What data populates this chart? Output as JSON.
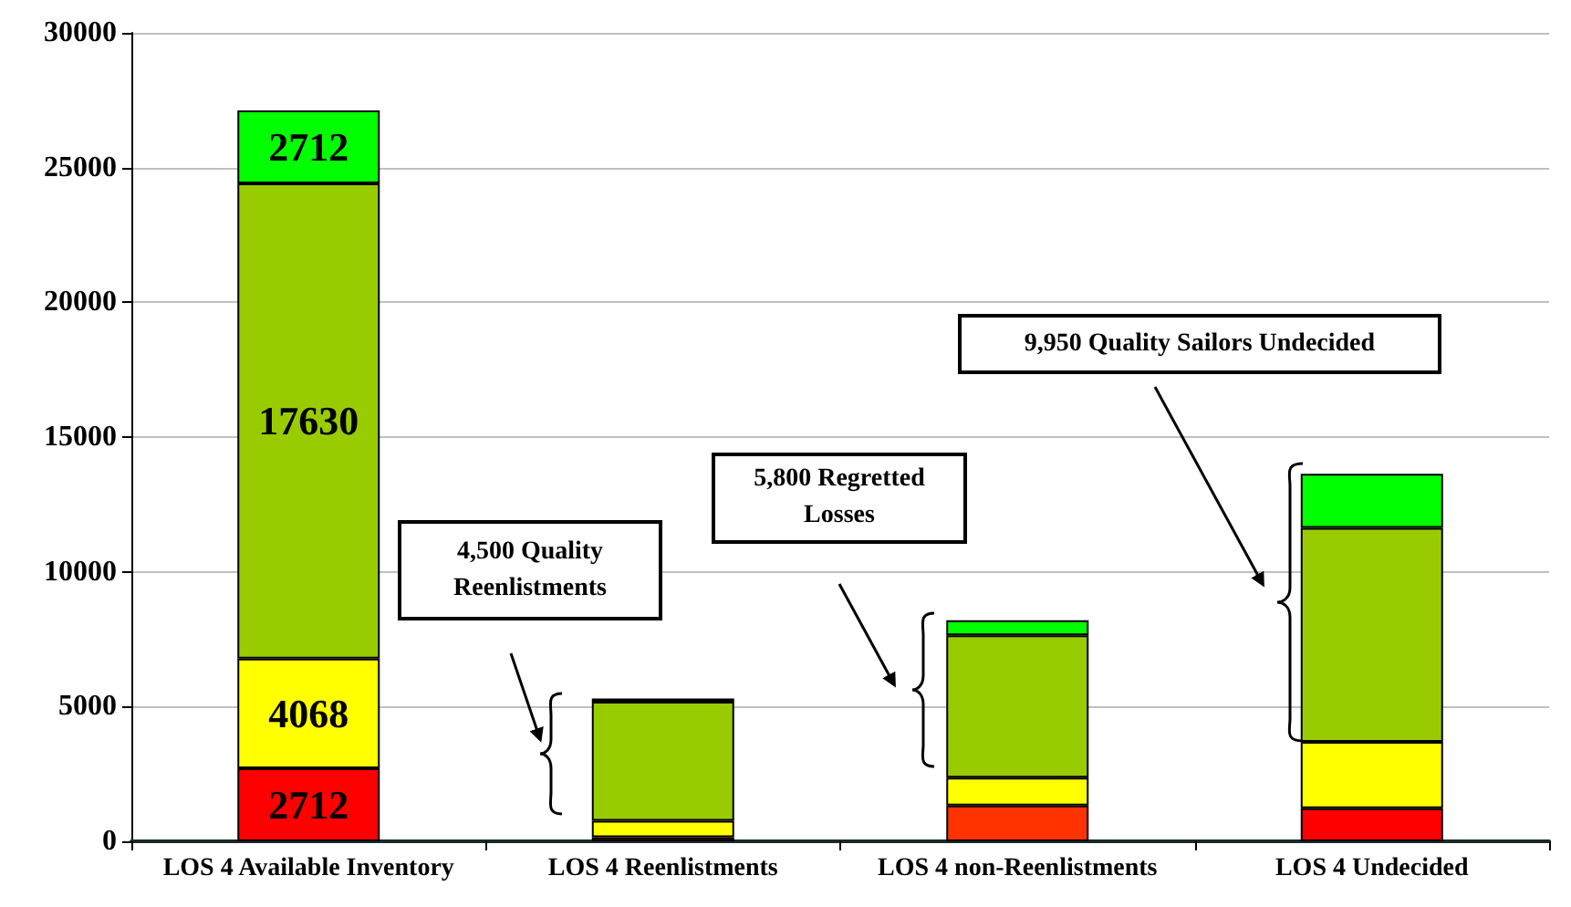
{
  "chart_data": {
    "type": "bar",
    "stacked": true,
    "categories": [
      "LOS 4 Available Inventory",
      "LOS 4 Reenlistments",
      "LOS 4 non-Reenlistments",
      "LOS 4 Undecided"
    ],
    "series": [
      {
        "color": "#ff0000",
        "colors": [
          "#ff0000",
          "#800000",
          "#ff3300",
          "#ff0000"
        ],
        "values": [
          2712,
          150,
          1330,
          1230
        ],
        "value_labels": [
          "2712",
          null,
          null,
          null
        ]
      },
      {
        "color": "#ffff00",
        "values": [
          4068,
          610,
          1030,
          2460
        ],
        "value_labels": [
          "4068",
          null,
          null,
          null
        ]
      },
      {
        "color": "#99cc00",
        "values": [
          17630,
          4420,
          5280,
          7940
        ],
        "value_labels": [
          "17630",
          null,
          null,
          null
        ]
      },
      {
        "color": "#00ff00",
        "values": [
          2712,
          120,
          560,
          2010
        ],
        "value_labels": [
          "2712",
          null,
          null,
          null
        ]
      }
    ],
    "ylim": [
      0,
      30000
    ],
    "yticks": [
      0,
      5000,
      10000,
      15000,
      20000,
      25000,
      30000
    ],
    "grid": "y",
    "annotations": [
      "4,500 Quality\nReenlistments",
      "5,800 Regretted\nLosses",
      "9,950 Quality Sailors Undecided"
    ]
  }
}
